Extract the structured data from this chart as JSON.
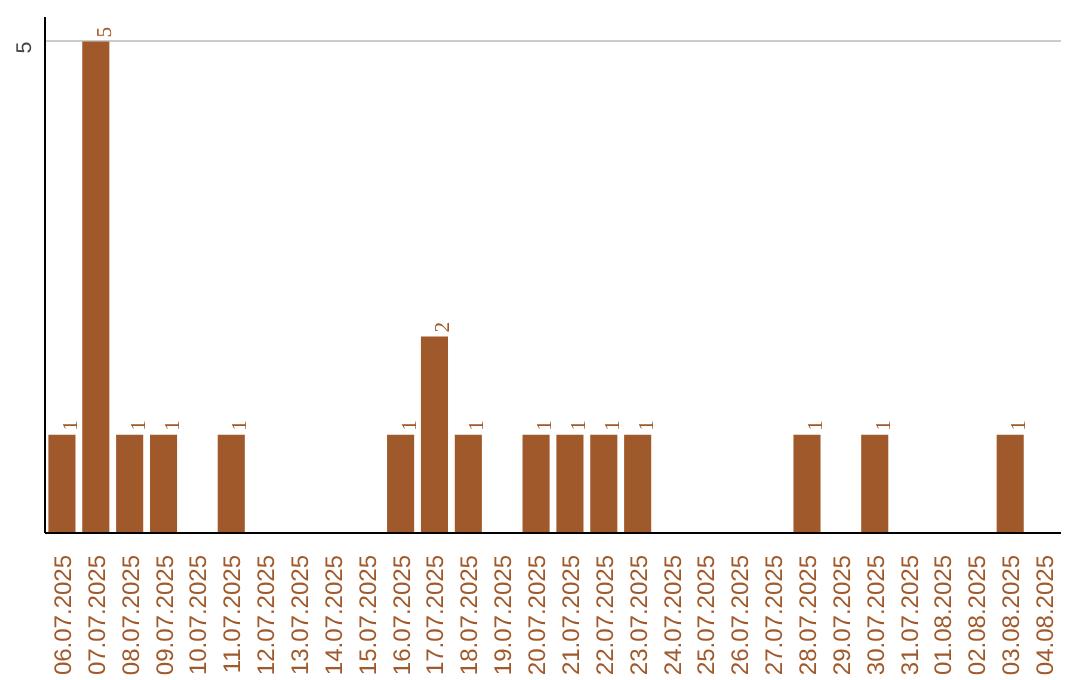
{
  "chart_data": {
    "type": "bar",
    "categories": [
      "06.07.2025",
      "07.07.2025",
      "08.07.2025",
      "09.07.2025",
      "10.07.2025",
      "11.07.2025",
      "12.07.2025",
      "13.07.2025",
      "14.07.2025",
      "15.07.2025",
      "16.07.2025",
      "17.07.2025",
      "18.07.2025",
      "19.07.2025",
      "20.07.2025",
      "21.07.2025",
      "22.07.2025",
      "23.07.2025",
      "24.07.2025",
      "25.07.2025",
      "26.07.2025",
      "27.07.2025",
      "28.07.2025",
      "29.07.2025",
      "30.07.2025",
      "31.07.2025",
      "01.08.2025",
      "02.08.2025",
      "03.08.2025",
      "04.08.2025"
    ],
    "values": [
      1,
      5,
      1,
      1,
      0,
      1,
      0,
      0,
      0,
      0,
      1,
      2,
      1,
      0,
      1,
      1,
      1,
      1,
      0,
      0,
      0,
      0,
      1,
      0,
      1,
      0,
      0,
      0,
      1,
      0
    ],
    "value_labels": [
      "1",
      "5",
      "1",
      "1",
      null,
      "1",
      null,
      null,
      null,
      null,
      "1",
      "2",
      "1",
      null,
      "1",
      "1",
      "1",
      "1",
      null,
      null,
      null,
      null,
      "1",
      null,
      "1",
      null,
      null,
      null,
      "1",
      null
    ],
    "color": "#a0592a",
    "ylim": [
      0,
      5.25
    ],
    "yticks": [
      5
    ],
    "grid": "y"
  }
}
